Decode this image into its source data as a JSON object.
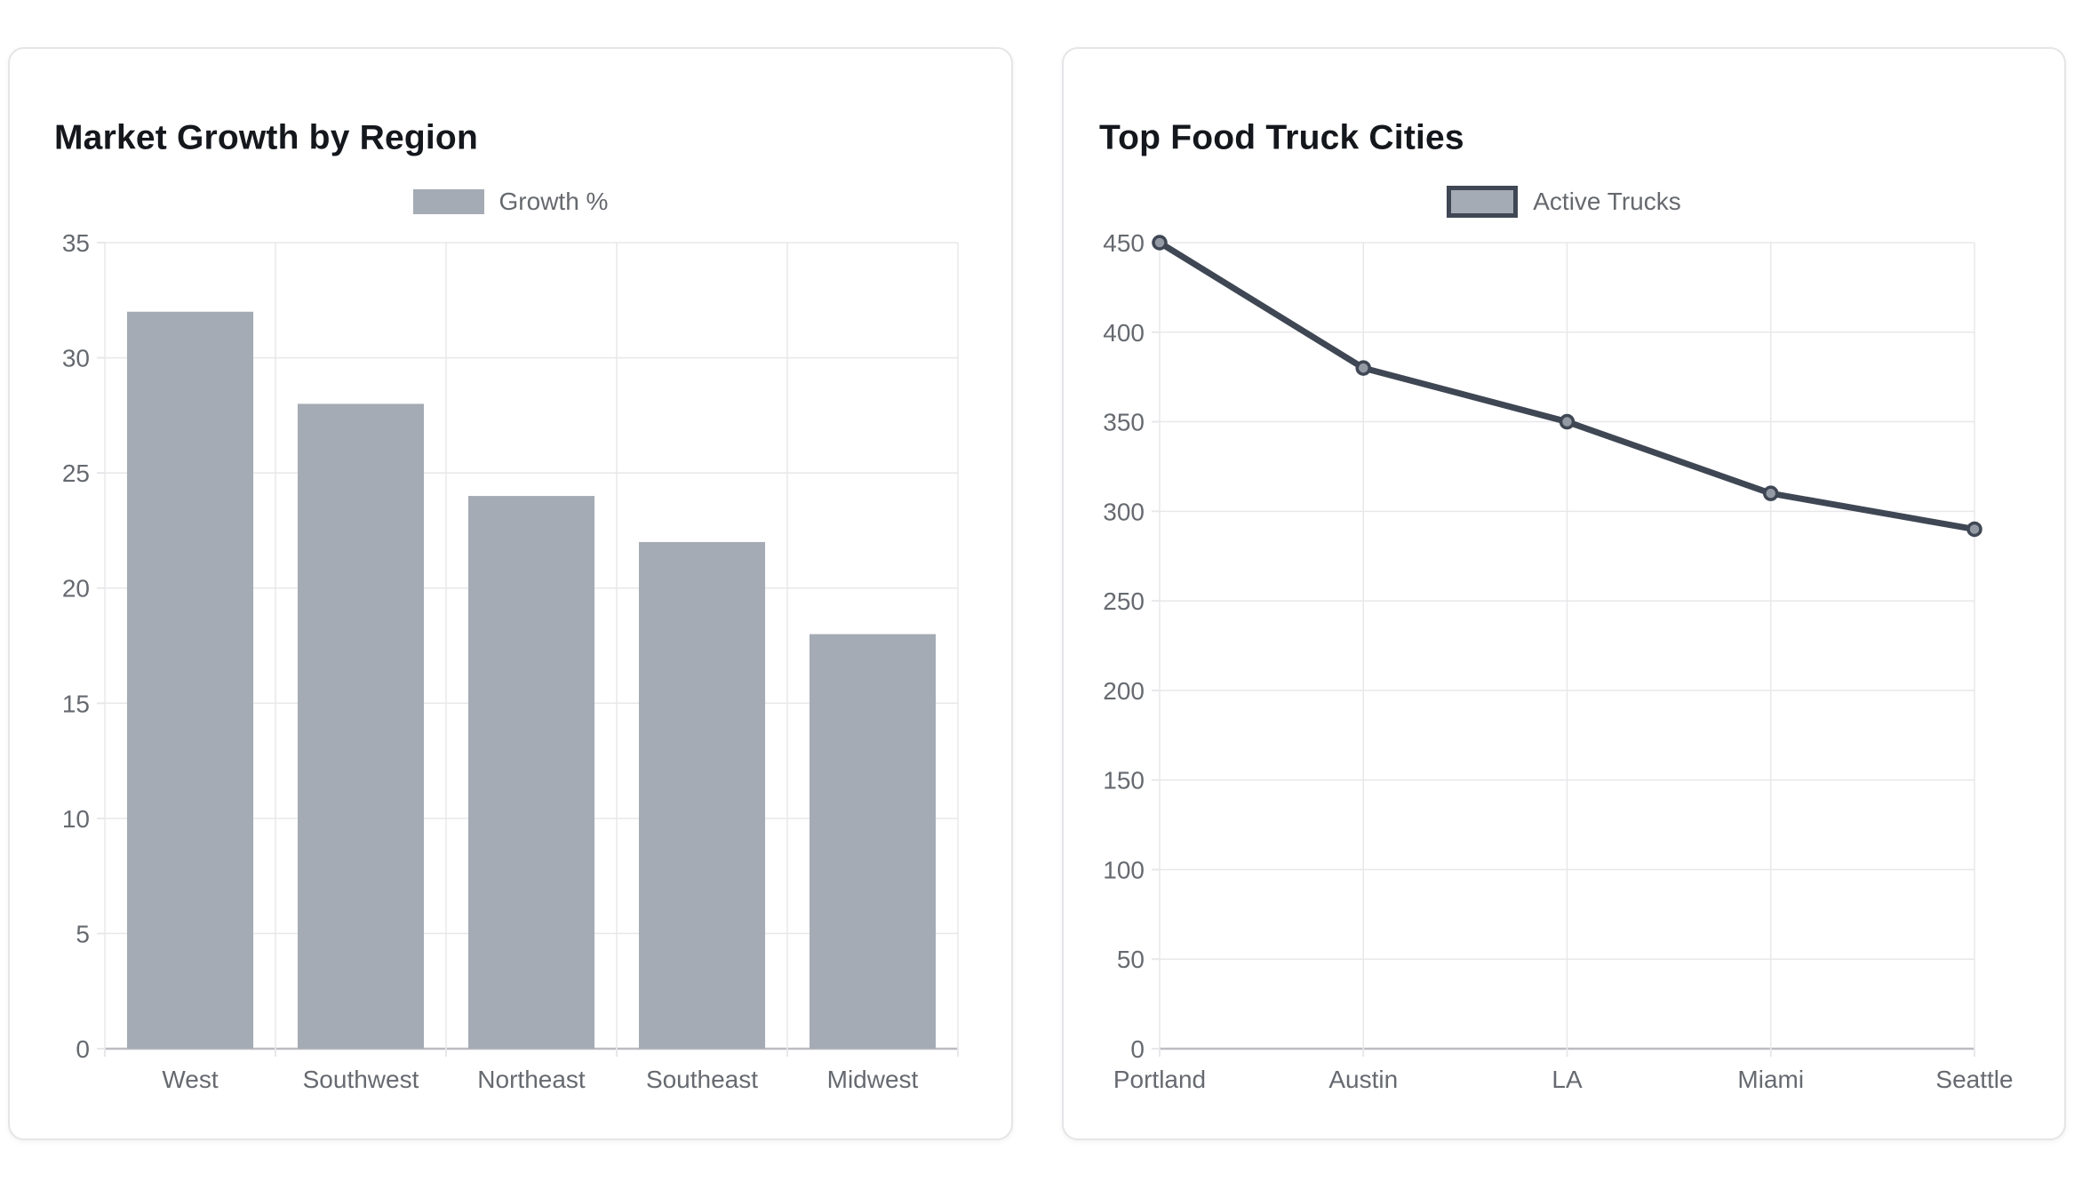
{
  "chart_data": [
    {
      "type": "bar",
      "title": "Market Growth by Region",
      "categories": [
        "West",
        "Southwest",
        "Northeast",
        "Southeast",
        "Midwest"
      ],
      "series": [
        {
          "name": "Growth %",
          "values": [
            32,
            28,
            24,
            22,
            18
          ]
        }
      ],
      "ylim": [
        0,
        35
      ],
      "ytick_step": 5,
      "ytick_labels": [
        "0",
        "5",
        "10",
        "15",
        "20",
        "25",
        "30",
        "35"
      ],
      "grid": true,
      "legend": {
        "label": "Growth %",
        "position": "top-center",
        "swatch_fill": "#a5abb4",
        "swatch_border": "none"
      },
      "bar_fill": "#a5abb4",
      "bar_percentage": 0.74
    },
    {
      "type": "line",
      "title": "Top Food Truck Cities",
      "categories": [
        "Portland",
        "Austin",
        "LA",
        "Miami",
        "Seattle"
      ],
      "series": [
        {
          "name": "Active Trucks",
          "values": [
            450,
            380,
            350,
            310,
            290
          ]
        }
      ],
      "ylim": [
        0,
        450
      ],
      "ytick_step": 50,
      "ytick_labels": [
        "0",
        "50",
        "100",
        "150",
        "200",
        "250",
        "300",
        "350",
        "400",
        "450"
      ],
      "grid": true,
      "legend": {
        "label": "Active Trucks",
        "position": "top-center",
        "swatch_fill": "#a5abb4",
        "swatch_border": "#3f4754"
      },
      "line_color": "#3f4754",
      "line_width": 7,
      "marker_fill": "#949aa4",
      "marker_border": "#3f4754",
      "marker_radius": 7
    }
  ],
  "colors": {
    "page_background": "#ffffff",
    "card_border": "#e5e5e8",
    "grid": "#e8e8eb",
    "zero_line": "#bcbcc1",
    "tick_label": "#666a70",
    "title": "#14171c"
  }
}
